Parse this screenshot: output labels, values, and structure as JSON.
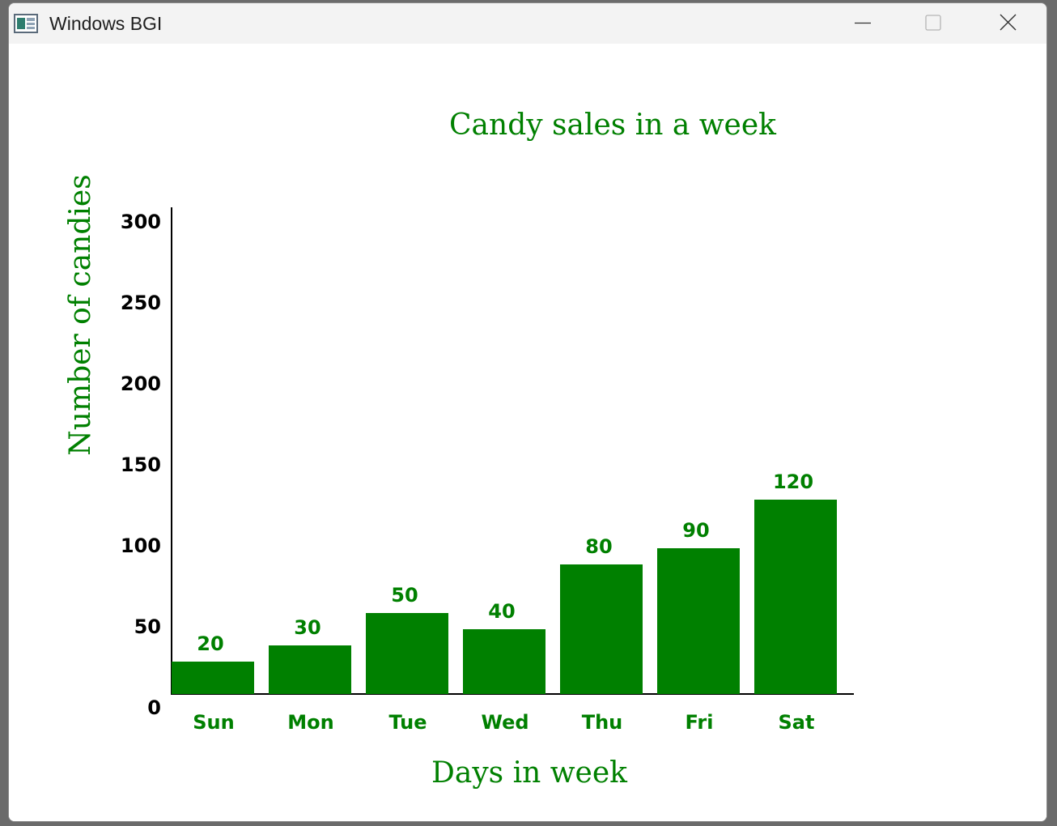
{
  "window": {
    "title": "Windows BGI",
    "icons": {
      "app": "bgi-window-icon",
      "minimize": "minimize-icon",
      "maximize": "maximize-icon",
      "close": "close-icon"
    }
  },
  "chart_data": {
    "type": "bar",
    "title": "Candy sales in a week",
    "xlabel": "Days in week",
    "ylabel": "Number of candies",
    "categories": [
      "Sun",
      "Mon",
      "Tue",
      "Wed",
      "Thu",
      "Fri",
      "Sat"
    ],
    "values": [
      20,
      30,
      50,
      40,
      80,
      90,
      120
    ],
    "bar_labels": [
      "20",
      "30",
      "50",
      "40",
      "80",
      "90",
      "120"
    ],
    "y_ticks": [
      0,
      50,
      100,
      150,
      200,
      250,
      300
    ],
    "ylim": [
      0,
      300
    ],
    "grid": false,
    "legend": "none",
    "colors": {
      "bars": "#008000",
      "text": "#008000",
      "axis": "#000000"
    }
  }
}
